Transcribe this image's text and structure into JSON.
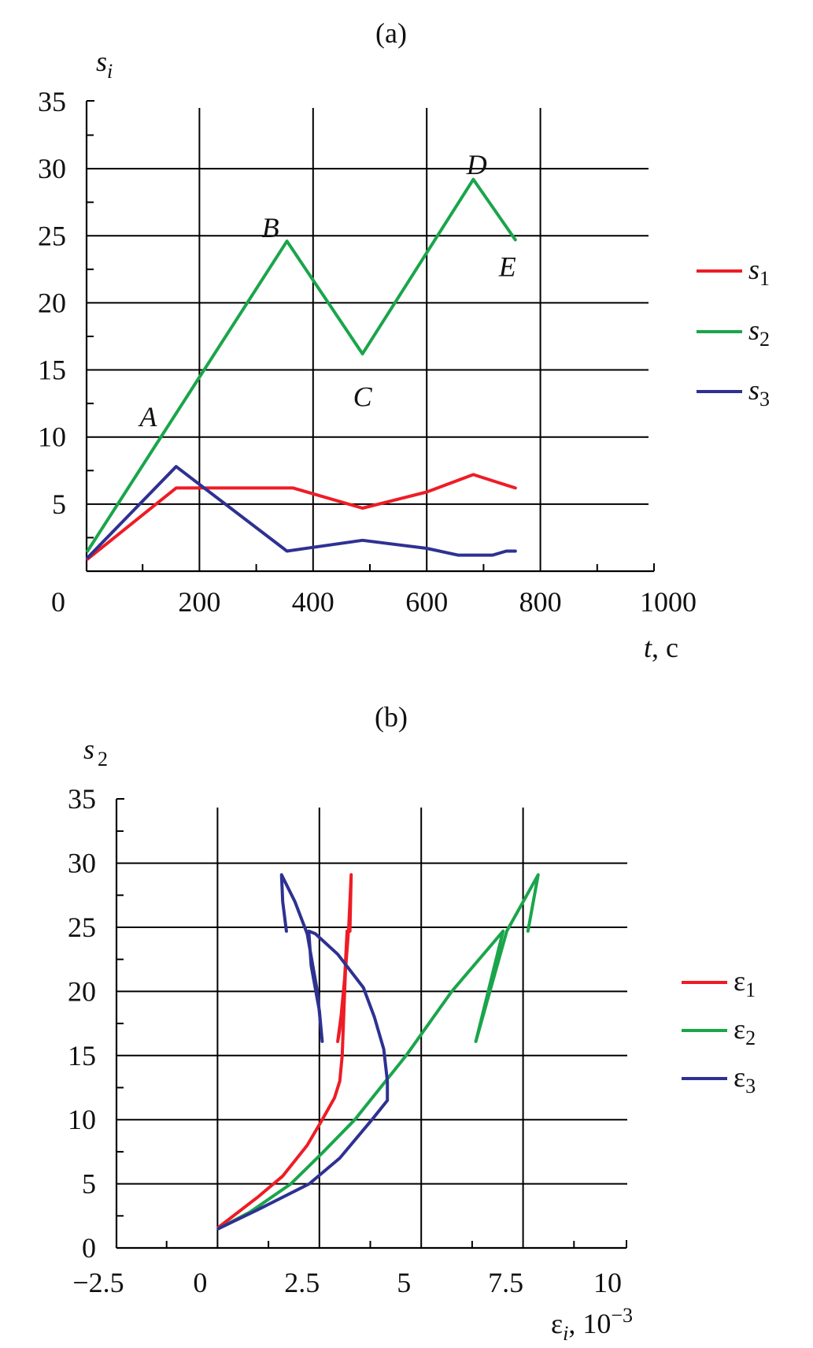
{
  "chart_data": [
    {
      "type": "line",
      "title": "(a)",
      "ylabel": {
        "main": "s",
        "sub": "i"
      },
      "xlabel": {
        "main": "t",
        "rest": ", c"
      },
      "xlim": [
        0,
        1000
      ],
      "ylim": [
        0,
        35
      ],
      "xticks": [
        "0",
        "200",
        "400",
        "600",
        "800",
        "1000"
      ],
      "xtick_values": [
        0,
        200,
        400,
        600,
        800,
        1000
      ],
      "yticks": [
        "5",
        "10",
        "15",
        "20",
        "25",
        "30",
        "35"
      ],
      "ytick_values": [
        5,
        10,
        15,
        20,
        25,
        30,
        35
      ],
      "grid": true,
      "legend_position": "right",
      "series": [
        {
          "name": "s",
          "sub": "1",
          "color": "#ee1c25",
          "points": [
            [
              3,
              0.9
            ],
            [
              159,
              6.2
            ],
            [
              365,
              6.2
            ],
            [
              487,
              4.7
            ],
            [
              600,
              5.9
            ],
            [
              682,
              7.2
            ],
            [
              756,
              6.2
            ]
          ]
        },
        {
          "name": "s",
          "sub": "2",
          "color": "#1aa54b",
          "points": [
            [
              3,
              1.5
            ],
            [
              354,
              24.6
            ],
            [
              487,
              16.2
            ],
            [
              682,
              29.2
            ],
            [
              756,
              24.7
            ]
          ]
        },
        {
          "name": "s",
          "sub": "3",
          "color": "#2e3192",
          "points": [
            [
              3,
              1.0
            ],
            [
              159,
              7.8
            ],
            [
              354,
              1.5
            ],
            [
              487,
              2.3
            ],
            [
              600,
              1.7
            ],
            [
              655,
              1.2
            ],
            [
              716,
              1.2
            ],
            [
              740,
              1.5
            ],
            [
              756,
              1.5
            ]
          ]
        }
      ],
      "annotations": [
        {
          "text": "A",
          "x": 110,
          "y": 10.8
        },
        {
          "text": "B",
          "x": 325,
          "y": 24.9
        },
        {
          "text": "C",
          "x": 487,
          "y": 12.3
        },
        {
          "text": "D",
          "x": 688,
          "y": 29.6
        },
        {
          "text": "E",
          "x": 742,
          "y": 22.0
        }
      ]
    },
    {
      "type": "line",
      "title": "(b)",
      "ylabel": {
        "main": "s",
        "sub": "2"
      },
      "xlabel": {
        "main": "ε",
        "sub": "i",
        "rest": ", 10",
        "sup": "−3"
      },
      "xlim": [
        -2.5,
        10
      ],
      "ylim": [
        0,
        35
      ],
      "xticks": [
        "−2.5",
        "0",
        "2.5",
        "5",
        "7.5",
        "10"
      ],
      "xtick_values": [
        -2.5,
        0,
        2.5,
        5,
        7.5,
        10
      ],
      "yticks": [
        "0",
        "5",
        "10",
        "15",
        "20",
        "25",
        "30",
        "35"
      ],
      "ytick_values": [
        0,
        5,
        10,
        15,
        20,
        25,
        30,
        35
      ],
      "grid": true,
      "legend_position": "right",
      "series": [
        {
          "name": "ε",
          "sub": "1",
          "color": "#ee1c25",
          "points": [
            [
              0.02,
              1.6
            ],
            [
              1.0,
              4
            ],
            [
              1.6,
              5.6
            ],
            [
              2.2,
              8
            ],
            [
              2.57,
              10
            ],
            [
              2.87,
              11.7
            ],
            [
              3.0,
              13
            ],
            [
              3.06,
              15
            ],
            [
              3.12,
              20
            ],
            [
              3.18,
              24.7
            ],
            [
              3.12,
              21
            ],
            [
              3.0,
              17
            ],
            [
              2.95,
              16.1
            ],
            [
              3.05,
              18.5
            ],
            [
              3.15,
              22
            ],
            [
              3.22,
              25
            ],
            [
              3.28,
              29.1
            ],
            [
              3.25,
              24.7
            ]
          ]
        },
        {
          "name": "ε",
          "sub": "2",
          "color": "#1aa54b",
          "points": [
            [
              0.02,
              1.5
            ],
            [
              0.8,
              2.8
            ],
            [
              1.8,
              5
            ],
            [
              2.6,
              7.5
            ],
            [
              3.37,
              10
            ],
            [
              4.0,
              12.5
            ],
            [
              4.63,
              15
            ],
            [
              5.75,
              20
            ],
            [
              7.01,
              24.7
            ],
            [
              6.34,
              16.1
            ],
            [
              7.1,
              24.7
            ],
            [
              7.87,
              29.1
            ],
            [
              7.62,
              24.7
            ]
          ]
        },
        {
          "name": "ε",
          "sub": "3",
          "color": "#2e3192",
          "points": [
            [
              0.02,
              1.5
            ],
            [
              1.0,
              3
            ],
            [
              2.25,
              5
            ],
            [
              3.0,
              7
            ],
            [
              3.79,
              10
            ],
            [
              4.17,
              11.5
            ],
            [
              4.17,
              13
            ],
            [
              4.08,
              15.5
            ],
            [
              3.85,
              18
            ],
            [
              3.58,
              20.3
            ],
            [
              2.95,
              22.9
            ],
            [
              2.4,
              24.5
            ],
            [
              2.24,
              24.7
            ],
            [
              2.3,
              22
            ],
            [
              2.5,
              18.5
            ],
            [
              2.57,
              16.1
            ],
            [
              2.45,
              20
            ],
            [
              2.2,
              24.5
            ],
            [
              1.9,
              27
            ],
            [
              1.57,
              29.1
            ],
            [
              1.6,
              27
            ],
            [
              1.69,
              24.7
            ]
          ]
        }
      ]
    }
  ]
}
